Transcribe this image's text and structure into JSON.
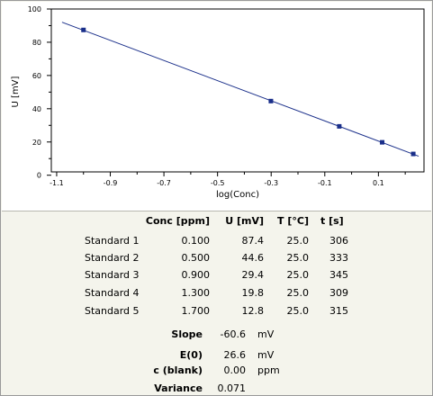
{
  "chart_data": {
    "type": "scatter",
    "title": "",
    "xlabel": "log(Conc)",
    "ylabel": "U [mV]",
    "xlim": [
      -1.12,
      0.27
    ],
    "ylim": [
      2,
      100
    ],
    "x_ticks": [
      "-1.1",
      "-0.9",
      "-0.7",
      "-0.5",
      "-0.3",
      "-0.1",
      "0.1"
    ],
    "y_ticks": [
      "100",
      "80",
      "60",
      "40",
      "20",
      "0"
    ],
    "grid": false,
    "legend": "none",
    "series_color": "#1a2f8a",
    "points": [
      {
        "x": -1.0,
        "y": 87.4
      },
      {
        "x": -0.301,
        "y": 44.6
      },
      {
        "x": -0.046,
        "y": 29.4
      },
      {
        "x": 0.114,
        "y": 19.8
      },
      {
        "x": 0.23,
        "y": 12.8
      }
    ],
    "fit_line": {
      "x": [
        -1.08,
        0.25
      ],
      "slope": -60.6,
      "intercept": 26.6
    }
  },
  "table": {
    "headers": [
      "Conc [ppm]",
      "U [mV]",
      "T [°C]",
      "t [s]"
    ],
    "rows": [
      {
        "name": "Standard 1",
        "conc": "0.100",
        "u": "87.4",
        "t": "25.0",
        "time": "306"
      },
      {
        "name": "Standard 2",
        "conc": "0.500",
        "u": "44.6",
        "t": "25.0",
        "time": "333"
      },
      {
        "name": "Standard 3",
        "conc": "0.900",
        "u": "29.4",
        "t": "25.0",
        "time": "345"
      },
      {
        "name": "Standard 4",
        "conc": "1.300",
        "u": "19.8",
        "t": "25.0",
        "time": "309"
      },
      {
        "name": "Standard 5",
        "conc": "1.700",
        "u": "12.8",
        "t": "25.0",
        "time": "315"
      }
    ]
  },
  "stats": [
    {
      "label": "Slope",
      "value": "-60.6",
      "unit": "mV"
    },
    {
      "label": "E(0)",
      "value": "26.6",
      "unit": "mV"
    },
    {
      "label": "c (blank)",
      "value": "0.00",
      "unit": "ppm"
    },
    {
      "label": "Variance",
      "value": "0.071",
      "unit": ""
    }
  ]
}
